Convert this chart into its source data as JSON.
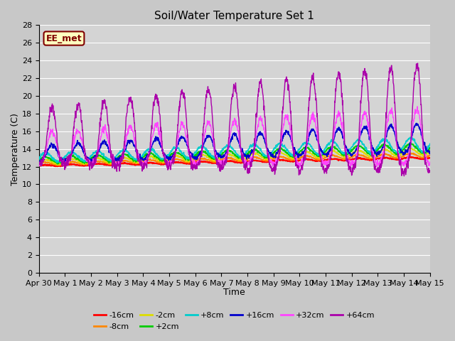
{
  "title": "Soil/Water Temperature Set 1",
  "xlabel": "Time",
  "ylabel": "Temperature (C)",
  "ylim": [
    0,
    28
  ],
  "yticks": [
    0,
    2,
    4,
    6,
    8,
    10,
    12,
    14,
    16,
    18,
    20,
    22,
    24,
    26,
    28
  ],
  "fig_bg": "#c8c8c8",
  "axes_bg": "#d4d4d4",
  "grid_color": "#ffffff",
  "annotation_text": "EE_met",
  "annotation_bg": "#ffffc0",
  "annotation_border": "#800000",
  "annotation_text_color": "#800000",
  "series": [
    {
      "label": "-16cm",
      "color": "#ff0000"
    },
    {
      "label": "-8cm",
      "color": "#ff8800"
    },
    {
      "label": "-2cm",
      "color": "#dddd00"
    },
    {
      "label": "+2cm",
      "color": "#00cc00"
    },
    {
      "label": "+8cm",
      "color": "#00cccc"
    },
    {
      "label": "+16cm",
      "color": "#0000cc"
    },
    {
      "label": "+32cm",
      "color": "#ff44ff"
    },
    {
      "label": "+64cm",
      "color": "#aa00aa"
    }
  ],
  "date_labels": [
    "Apr 30",
    "May 1",
    "May 2",
    "May 3",
    "May 4",
    "May 5",
    "May 6",
    "May 7",
    "May 8",
    "May 9",
    "May 10",
    "May 11",
    "May 12",
    "May 13",
    "May 14",
    "May 15"
  ]
}
